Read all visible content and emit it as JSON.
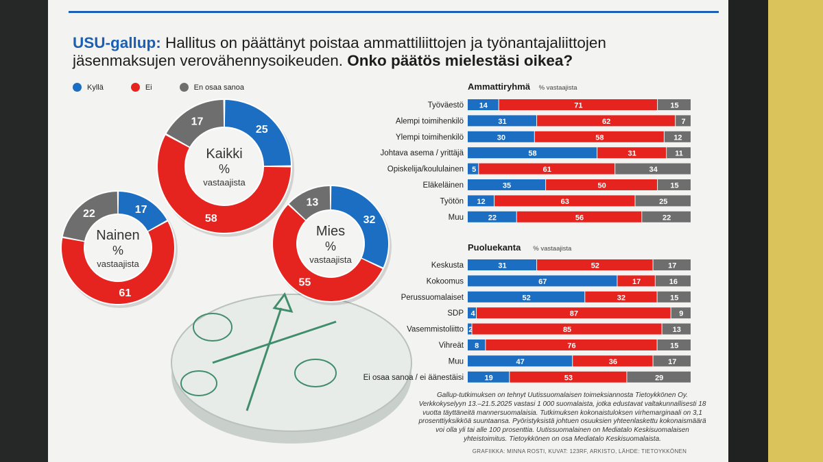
{
  "header": {
    "brand": "USU-gallup:",
    "question_part1": "Hallitus on päättänyt poistaa ammattiliittojen ja työnantajaliittojen jäsenmaksujen verovähennysoikeuden.",
    "question_part2": "Onko päätös mielestäsi oikea?"
  },
  "colors": {
    "yes": "#1b6ec2",
    "no": "#e52420",
    "dunno": "#6e6e6e",
    "accent": "#1a5fb4"
  },
  "legend": [
    "Kyllä",
    "Ei",
    "En osaa sanoa"
  ],
  "chart_data": [
    {
      "type": "pie",
      "title": "Kaikki",
      "subtitle1": "%",
      "subtitle2": "vastaajista",
      "labels": [
        "Kyllä",
        "Ei",
        "En osaa sanoa"
      ],
      "values": [
        25,
        58,
        17
      ]
    },
    {
      "type": "pie",
      "title": "Nainen",
      "subtitle1": "%",
      "subtitle2": "vastaajista",
      "labels": [
        "Kyllä",
        "Ei",
        "En osaa sanoa"
      ],
      "values": [
        17,
        61,
        22
      ]
    },
    {
      "type": "pie",
      "title": "Mies",
      "subtitle1": "%",
      "subtitle2": "vastaajista",
      "labels": [
        "Kyllä",
        "Ei",
        "En osaa sanoa"
      ],
      "values": [
        32,
        55,
        13
      ]
    },
    {
      "type": "bar",
      "title": "Ammattiryhmä",
      "subtitle": "% vastaajista",
      "series_names": [
        "Kyllä",
        "Ei",
        "En osaa sanoa"
      ],
      "rows": [
        {
          "label": "Työväestö",
          "values": [
            14,
            71,
            15
          ]
        },
        {
          "label": "Alempi toimihenkilö",
          "values": [
            31,
            62,
            7
          ]
        },
        {
          "label": "Ylempi toimihenkilö",
          "values": [
            30,
            58,
            12
          ]
        },
        {
          "label": "Johtava asema / yrittäjä",
          "values": [
            58,
            31,
            11
          ]
        },
        {
          "label": "Opiskelija/koululainen",
          "values": [
            5,
            61,
            34
          ]
        },
        {
          "label": "Eläkeläinen",
          "values": [
            35,
            50,
            15
          ]
        },
        {
          "label": "Työtön",
          "values": [
            12,
            63,
            25
          ]
        },
        {
          "label": "Muu",
          "values": [
            22,
            56,
            22
          ]
        }
      ]
    },
    {
      "type": "bar",
      "title": "Puoluekanta",
      "subtitle": "% vastaajista",
      "series_names": [
        "Kyllä",
        "Ei",
        "En osaa sanoa"
      ],
      "rows": [
        {
          "label": "Keskusta",
          "values": [
            31,
            52,
            17
          ]
        },
        {
          "label": "Kokoomus",
          "values": [
            67,
            17,
            16
          ]
        },
        {
          "label": "Perussuomalaiset",
          "values": [
            52,
            32,
            15
          ]
        },
        {
          "label": "SDP",
          "values": [
            4,
            87,
            9
          ]
        },
        {
          "label": "Vasemmistoliitto",
          "values": [
            2,
            85,
            13
          ]
        },
        {
          "label": "Vihreät",
          "values": [
            8,
            76,
            15
          ]
        },
        {
          "label": "Muu",
          "values": [
            47,
            36,
            17
          ]
        },
        {
          "label": "Ei osaa sanoa / ei äänestäisi",
          "values": [
            19,
            53,
            29
          ]
        }
      ]
    }
  ],
  "footnote": "Gallup-tutkimuksen on tehnyt Uutissuomalaisen toimeksiannosta Tietoykkönen Oy. Verkkokyselyyn 13.–21.5.2025 vastasi 1 000 suomalaista, jotka edustavat valtakunnallisesti 18 vuotta täyttäneitä mannersuomalaisia. Tutkimuksen kokonaistuloksen virhemarginaali on 3,1 prosenttiyksikköä suuntaansa. Pyöristyksistä johtuen osuuksien yhteenlaskettu kokonaismäärä voi olla yli tai alle 100 prosenttia. Uutissuomalainen on Mediatalo Keskisuomalaisen yhteistoimitus. Tietoykkönen on osa Mediatalo Keskisuomalaista.",
  "credit": "GRAFIIKKA: MINNA ROSTI, KUVAT: 123RF, ARKISTO, LÄHDE: TIETOYKKÖNEN"
}
